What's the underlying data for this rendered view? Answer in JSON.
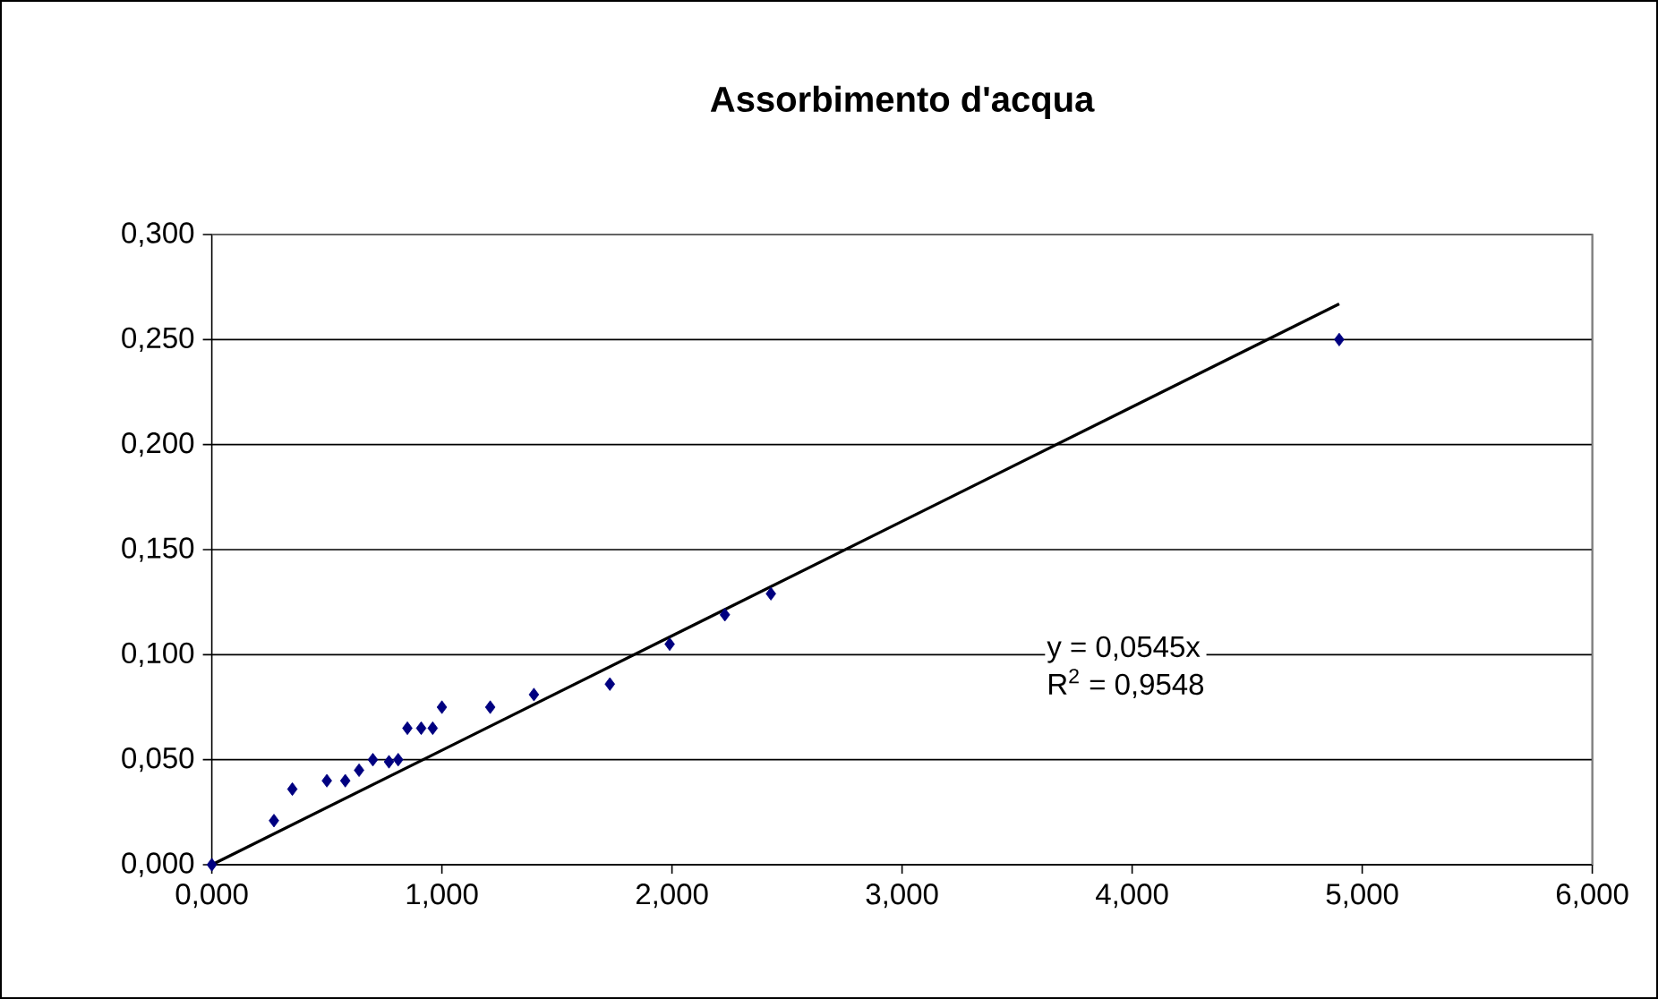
{
  "chart_data": {
    "type": "scatter",
    "title": "Assorbimento d'acqua",
    "xlim": [
      0,
      6
    ],
    "ylim": [
      0,
      0.3
    ],
    "xticks": [
      {
        "value": 0,
        "label": "0,000"
      },
      {
        "value": 1,
        "label": "1,000"
      },
      {
        "value": 2,
        "label": "2,000"
      },
      {
        "value": 3,
        "label": "3,000"
      },
      {
        "value": 4,
        "label": "4,000"
      },
      {
        "value": 5,
        "label": "5,000"
      },
      {
        "value": 6,
        "label": "6,000"
      }
    ],
    "yticks": [
      {
        "value": 0,
        "label": "0,000"
      },
      {
        "value": 0.05,
        "label": "0,050"
      },
      {
        "value": 0.1,
        "label": "0,100"
      },
      {
        "value": 0.15,
        "label": "0,150"
      },
      {
        "value": 0.2,
        "label": "0,200"
      },
      {
        "value": 0.25,
        "label": "0,250"
      },
      {
        "value": 0.3,
        "label": "0,300"
      }
    ],
    "grid": "y",
    "marker": "diamond",
    "series": [
      {
        "color": "#000080",
        "x": [
          0,
          0.27,
          0.35,
          0.5,
          0.58,
          0.64,
          0.7,
          0.77,
          0.81,
          0.85,
          0.91,
          0.96,
          1.0,
          1.21,
          1.4,
          1.73,
          1.99,
          2.23,
          2.43,
          4.9
        ],
        "values": [
          0,
          0.021,
          0.036,
          0.04,
          0.04,
          0.045,
          0.05,
          0.049,
          0.05,
          0.065,
          0.065,
          0.065,
          0.075,
          0.075,
          0.081,
          0.086,
          0.105,
          0.119,
          0.129,
          0.25
        ]
      },
      {
        "type": "line",
        "color": "#000000",
        "marker": "none",
        "x": [
          0,
          4.9
        ],
        "values": [
          0,
          0.267
        ]
      }
    ],
    "annotations": [
      "y = 0,0545x",
      "R$^{2}$ = 0,9548"
    ]
  }
}
